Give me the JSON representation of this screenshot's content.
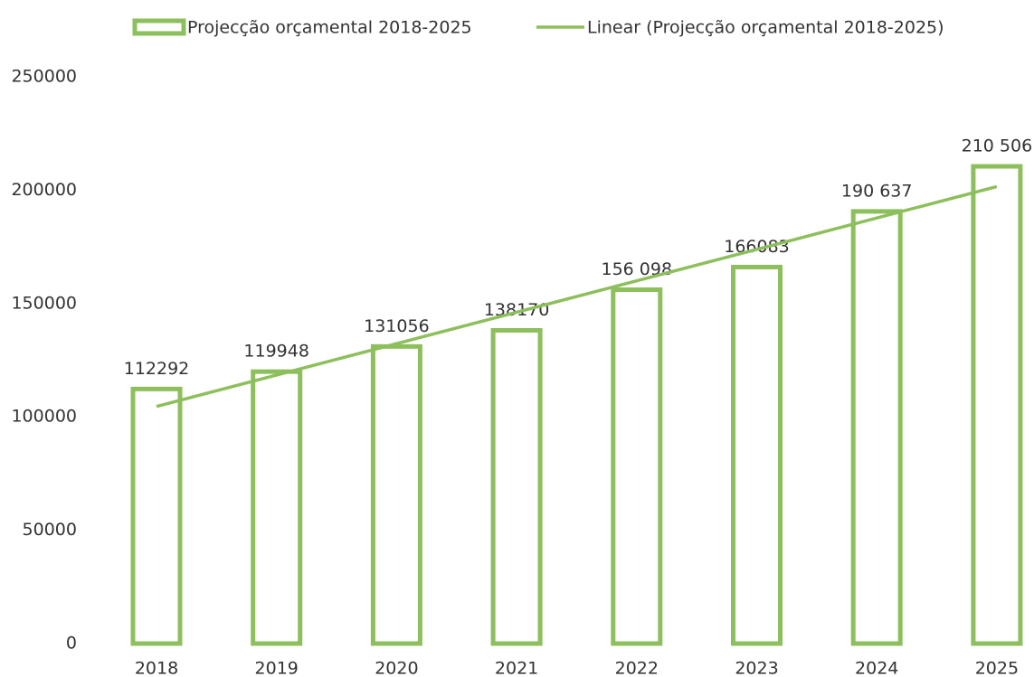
{
  "chart_data": {
    "type": "bar",
    "categories": [
      "2018",
      "2019",
      "2020",
      "2021",
      "2022",
      "2023",
      "2024",
      "2025"
    ],
    "series": [
      {
        "name": "Projecção orçamental 2018-2025",
        "type": "bar",
        "color": "#8dbf5c",
        "values": [
          112292,
          119948,
          131056,
          138170,
          156098,
          166083,
          190637,
          210506
        ],
        "value_labels": [
          "112292",
          "119948",
          "131056",
          "138170",
          "156 098",
          "166083",
          "190 637",
          "210 506"
        ]
      },
      {
        "name": "Linear (Projecção orçamental 2018-2025)",
        "type": "line",
        "color": "#8dbf5c",
        "values": [
          104600,
          118457,
          132314,
          146171,
          160028,
          173885,
          187742,
          201599
        ]
      }
    ],
    "ylim": [
      0,
      250000
    ],
    "yticks": [
      0,
      50000,
      100000,
      150000,
      200000,
      250000
    ],
    "grid": false,
    "legend": "top"
  }
}
